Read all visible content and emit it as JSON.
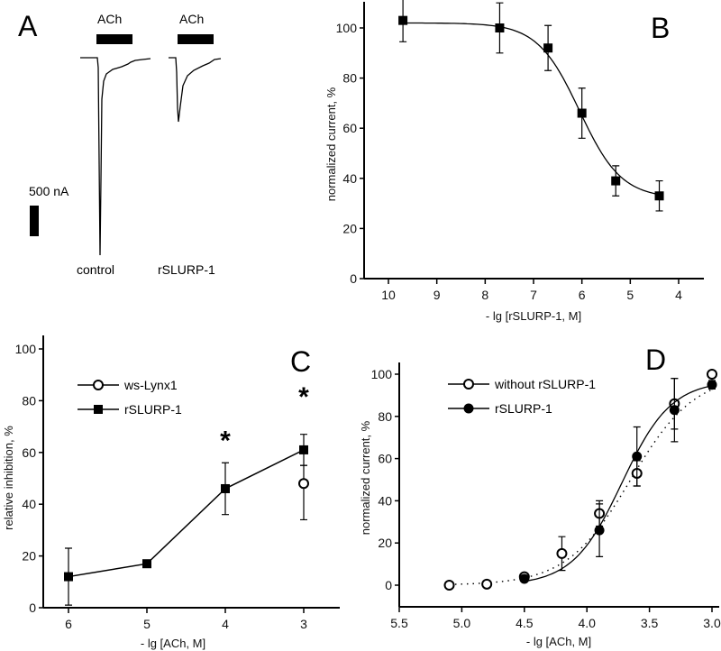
{
  "panel_a": {
    "letter": "A",
    "stimulus_label_1": "ACh",
    "stimulus_label_2": "ACh",
    "scale_label": "500 nA",
    "trace_label_1": "control",
    "trace_label_2": "rSLURP-1"
  },
  "chart_data": [
    {
      "id": "B",
      "type": "scatter",
      "letter": "B",
      "xlabel": "- lg [rSLURP-1, M]",
      "ylabel": "normalized current, %",
      "xlim": [
        10.5,
        3.5
      ],
      "ylim": [
        0,
        110
      ],
      "xticks": [
        10,
        9,
        8,
        7,
        6,
        5,
        4
      ],
      "yticks": [
        0,
        20,
        40,
        60,
        80,
        100
      ],
      "series": [
        {
          "name": "rSLURP-1",
          "marker": "square-filled",
          "x": [
            9.7,
            7.7,
            6.7,
            6.0,
            5.3,
            4.4
          ],
          "y": [
            103,
            100,
            92,
            66,
            39,
            33
          ],
          "err": [
            8.5,
            10,
            9,
            10,
            6,
            6
          ],
          "fit": {
            "model": "sigmoid",
            "top": 102,
            "bottom": 32,
            "mid": 6.05,
            "hill": 1.0,
            "from": 9.7,
            "to": 4.4,
            "style": "solid"
          }
        }
      ]
    },
    {
      "id": "C",
      "type": "line",
      "letter": "C",
      "xlabel": "- lg [ACh, M]",
      "ylabel": "relative inhibition, %",
      "xlim": [
        6.55,
        2.55
      ],
      "ylim": [
        0,
        100
      ],
      "xticks": [
        6,
        5,
        4,
        3
      ],
      "yticks": [
        0,
        20,
        40,
        60,
        80,
        100
      ],
      "legend_position": "top-left",
      "annotations": [
        {
          "text": "*",
          "x": 4,
          "y": 66
        },
        {
          "text": "*",
          "x": 3,
          "y": 83
        }
      ],
      "series": [
        {
          "name": "ws-Lynx1",
          "marker": "circle-open",
          "x": [
            3
          ],
          "y": [
            48
          ],
          "err_up": [
            7
          ],
          "err_down": [
            14
          ]
        },
        {
          "name": "rSLURP-1",
          "marker": "square-filled",
          "connect": true,
          "x": [
            6,
            5,
            4,
            3
          ],
          "y": [
            12,
            17,
            46,
            61
          ],
          "err": [
            11,
            1,
            10,
            6
          ]
        }
      ]
    },
    {
      "id": "D",
      "type": "scatter",
      "letter": "D",
      "xlabel": "- lg [ACh, M]",
      "ylabel": "normalized current, %",
      "xlim": [
        5.5,
        3.0
      ],
      "ylim": [
        -10,
        105
      ],
      "xticks": [
        5.5,
        5.0,
        4.5,
        4.0,
        3.5,
        3.0
      ],
      "xtick_labels": [
        "5.5",
        "5.0",
        "4.5",
        "4.0",
        "3.5",
        "3.0"
      ],
      "yticks": [
        0,
        20,
        40,
        60,
        80,
        100
      ],
      "legend_position": "top-left",
      "series": [
        {
          "name": "without rSLURP-1",
          "marker": "circle-open",
          "x": [
            5.1,
            4.8,
            4.5,
            4.2,
            3.9,
            3.6,
            3.3,
            3.0
          ],
          "y": [
            0,
            0.5,
            4,
            15,
            34,
            53,
            86,
            100
          ],
          "err": [
            0,
            0,
            0,
            8,
            6,
            6,
            12,
            1.5
          ],
          "fit": {
            "model": "sigmoid-rise",
            "top": 100,
            "mid": 3.65,
            "hill": 1.7,
            "from": 5.1,
            "to": 3.0,
            "style": "dotted"
          }
        },
        {
          "name": "rSLURP-1",
          "marker": "circle-filled",
          "x": [
            4.5,
            3.9,
            3.6,
            3.3,
            3.0
          ],
          "y": [
            3,
            26,
            61,
            83,
            95
          ],
          "err": [
            0,
            12.5,
            14,
            15,
            2
          ],
          "fit": {
            "model": "sigmoid-rise",
            "top": 97,
            "mid": 3.72,
            "hill": 2.2,
            "from": 4.5,
            "to": 3.0,
            "style": "solid"
          }
        }
      ]
    }
  ]
}
